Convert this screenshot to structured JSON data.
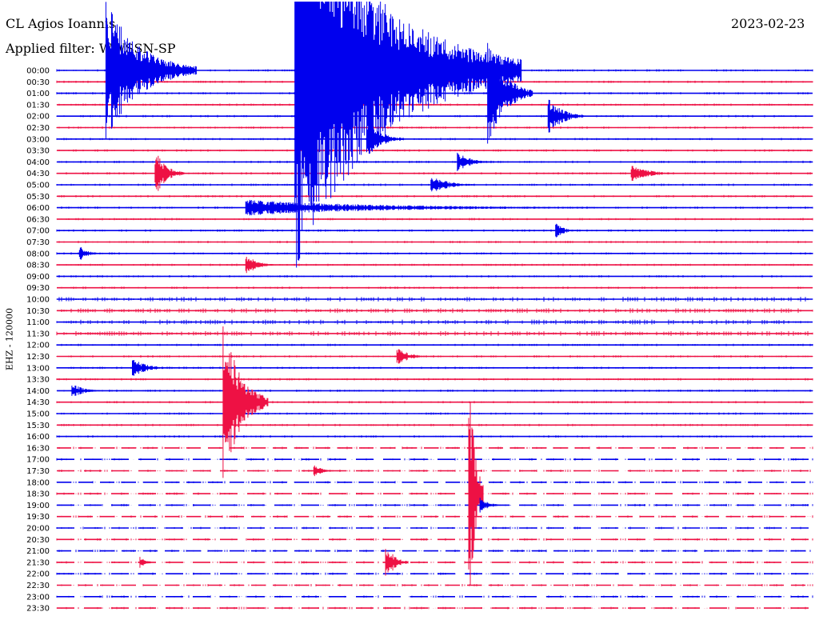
{
  "header": {
    "station": "CL Agios Ioannis",
    "date": "2023-02-23",
    "filter": "Applied filter: WWSSN-SP",
    "channel": "EHZ - 120000"
  },
  "colors": {
    "even": "#0000ee",
    "odd": "#ee1144"
  },
  "chart_data": {
    "type": "line",
    "title": "CL Agios Ioannis",
    "subtitle": "Applied filter: WWSSN-SP",
    "ylabel": "EHZ - 120000",
    "rows": [
      "00:00",
      "00:30",
      "01:00",
      "01:30",
      "02:00",
      "02:30",
      "03:00",
      "03:30",
      "04:00",
      "04:30",
      "05:00",
      "05:30",
      "06:00",
      "06:30",
      "07:00",
      "07:30",
      "08:00",
      "08:30",
      "09:00",
      "09:30",
      "10:00",
      "10:30",
      "11:00",
      "11:30",
      "12:00",
      "12:30",
      "13:00",
      "13:30",
      "14:00",
      "14:30",
      "15:00",
      "15:30",
      "16:00",
      "16:30",
      "17:00",
      "17:30",
      "18:00",
      "18:30",
      "19:00",
      "19:30",
      "20:00",
      "20:30",
      "21:00",
      "21:30",
      "22:00",
      "22:30",
      "23:00",
      "23:30"
    ],
    "events": [
      {
        "row": 0,
        "x": 0.065,
        "amp": 90,
        "dur": 0.12
      },
      {
        "row": 0,
        "x": 0.315,
        "amp": 260,
        "dur": 0.3
      },
      {
        "row": 2,
        "x": 0.375,
        "amp": 60,
        "dur": 0.06
      },
      {
        "row": 2,
        "x": 0.57,
        "amp": 70,
        "dur": 0.06
      },
      {
        "row": 4,
        "x": 0.65,
        "amp": 25,
        "dur": 0.05
      },
      {
        "row": 6,
        "x": 0.41,
        "amp": 25,
        "dur": 0.05
      },
      {
        "row": 8,
        "x": 0.53,
        "amp": 12,
        "dur": 0.05
      },
      {
        "row": 9,
        "x": 0.13,
        "amp": 30,
        "dur": 0.04
      },
      {
        "row": 9,
        "x": 0.76,
        "amp": 12,
        "dur": 0.06
      },
      {
        "row": 10,
        "x": 0.495,
        "amp": 12,
        "dur": 0.06
      },
      {
        "row": 12,
        "x": 0.25,
        "amp": 10,
        "dur": 0.5
      },
      {
        "row": 14,
        "x": 0.66,
        "amp": 10,
        "dur": 0.03
      },
      {
        "row": 16,
        "x": 0.03,
        "amp": 10,
        "dur": 0.03
      },
      {
        "row": 17,
        "x": 0.25,
        "amp": 14,
        "dur": 0.04
      },
      {
        "row": 25,
        "x": 0.45,
        "amp": 12,
        "dur": 0.04
      },
      {
        "row": 26,
        "x": 0.1,
        "amp": 12,
        "dur": 0.05
      },
      {
        "row": 28,
        "x": 0.02,
        "amp": 10,
        "dur": 0.04
      },
      {
        "row": 29,
        "x": 0.22,
        "amp": 110,
        "dur": 0.06
      },
      {
        "row": 35,
        "x": 0.34,
        "amp": 8,
        "dur": 0.03
      },
      {
        "row": 37,
        "x": 0.545,
        "amp": 180,
        "dur": 0.02
      },
      {
        "row": 38,
        "x": 0.56,
        "amp": 10,
        "dur": 0.03
      },
      {
        "row": 43,
        "x": 0.11,
        "amp": 8,
        "dur": 0.02
      },
      {
        "row": 43,
        "x": 0.435,
        "amp": 26,
        "dur": 0.03
      }
    ]
  }
}
